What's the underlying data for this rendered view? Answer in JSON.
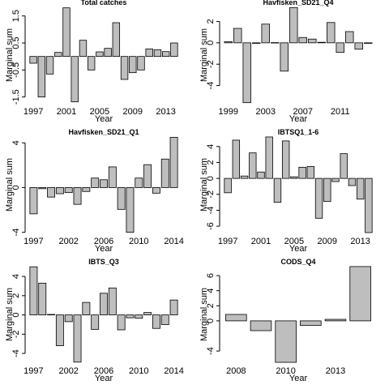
{
  "chart_data": [
    {
      "type": "bar",
      "title": "Total catches",
      "xlabel": "Year",
      "ylabel": "Marginal sum",
      "color": "#bebebe",
      "categories": [
        "1997",
        null,
        null,
        null,
        "2001",
        null,
        null,
        null,
        "2005",
        null,
        null,
        null,
        "2009",
        null,
        null,
        null,
        "2013",
        null
      ],
      "values": [
        -0.25,
        -1.5,
        -0.65,
        0.15,
        1.8,
        -1.68,
        0.6,
        -0.5,
        0.17,
        0.3,
        1.25,
        -0.85,
        -0.6,
        -0.5,
        0.28,
        0.25,
        0.18,
        0.5
      ],
      "ylim": [
        -1.75,
        1.85
      ],
      "yticks": [
        -1.5,
        -0.5,
        0.5,
        1.5
      ]
    },
    {
      "type": "bar",
      "title": "Havfisken_SD21_Q4",
      "xlabel": "Year",
      "ylabel": "Marginal sum",
      "color": "#bebebe",
      "categories": [
        "1999",
        null,
        null,
        null,
        "2003",
        null,
        null,
        null,
        "2007",
        null,
        null,
        null,
        "2011",
        null,
        null,
        null
      ],
      "values": [
        0.1,
        1.35,
        -5.6,
        -0.05,
        1.75,
        0.02,
        -2.65,
        3.3,
        0.5,
        0.35,
        0.05,
        1.9,
        -0.9,
        1.05,
        -0.6,
        -0.05
      ],
      "ylim": [
        -5.7,
        3.4
      ],
      "yticks": [
        -4,
        -2,
        0,
        2
      ]
    },
    {
      "type": "bar",
      "title": "Havfisken_SD21_Q1",
      "xlabel": "Year",
      "ylabel": "Marginal sum",
      "color": "#bebebe",
      "categories": [
        "1997",
        null,
        null,
        null,
        "2002",
        null,
        null,
        null,
        "2006",
        null,
        null,
        null,
        "2010",
        null,
        null,
        null,
        "2014"
      ],
      "values": [
        -2.35,
        -0.1,
        -0.85,
        -0.55,
        -0.45,
        -1.5,
        -0.35,
        0.85,
        0.7,
        1.85,
        -1.95,
        -4.0,
        0.85,
        2.05,
        -0.5,
        2.55,
        4.5
      ],
      "ylim": [
        -4.1,
        4.6
      ],
      "yticks": [
        -4,
        0,
        4
      ]
    },
    {
      "type": "bar",
      "title": "IBTSQ1_1-6",
      "xlabel": "Year",
      "ylabel": "Marginal sum",
      "color": "#bebebe",
      "categories": [
        "1997",
        null,
        null,
        null,
        "2001",
        null,
        null,
        null,
        "2005",
        null,
        null,
        null,
        "2009",
        null,
        null,
        null,
        "2013",
        null
      ],
      "values": [
        -1.8,
        4.8,
        0.3,
        3.2,
        0.8,
        5.2,
        -3.0,
        4.7,
        0.2,
        1.4,
        1.5,
        -5.0,
        -2.9,
        -0.4,
        3.1,
        -0.9,
        -2.6,
        -6.8
      ],
      "ylim": [
        -6.9,
        5.3
      ],
      "yticks": [
        -6,
        -4,
        -2,
        0,
        2,
        4
      ]
    },
    {
      "type": "bar",
      "title": "IBTS_Q3",
      "xlabel": "Year",
      "ylabel": "Marginal sum",
      "color": "#bebebe",
      "categories": [
        "1997",
        null,
        null,
        null,
        "2002",
        null,
        null,
        null,
        "2006",
        null,
        null,
        null,
        "2010",
        null,
        null,
        null,
        "2014"
      ],
      "values": [
        5.0,
        3.3,
        0.05,
        -3.2,
        -0.7,
        -4.9,
        1.3,
        -1.5,
        2.25,
        2.8,
        -1.55,
        -0.3,
        -0.35,
        0.25,
        -1.4,
        -1.0,
        1.55
      ],
      "ylim": [
        -5.0,
        5.1
      ],
      "yticks": [
        -4,
        -2,
        0,
        2,
        4
      ]
    },
    {
      "type": "bar",
      "title": "CODS_Q4",
      "xlabel": "Year",
      "ylabel": "Marginal sum",
      "color": "#bebebe",
      "categories": [
        "2008",
        null,
        "2010",
        null,
        "2013",
        null
      ],
      "values": [
        0.85,
        -1.3,
        -5.5,
        -0.6,
        0.2,
        7.2
      ],
      "ylim": [
        -5.6,
        7.3
      ],
      "yticks": [
        -4,
        0,
        2,
        4,
        6
      ]
    }
  ]
}
